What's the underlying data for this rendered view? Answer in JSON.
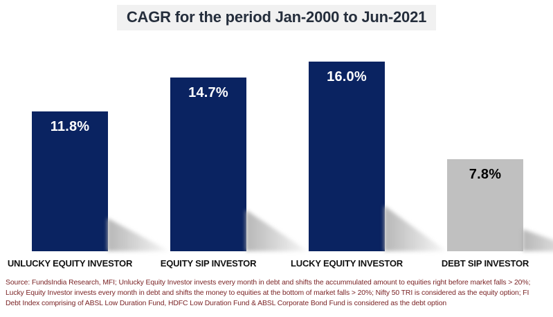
{
  "chart_data": {
    "type": "bar",
    "title": "CAGR for the period Jan-2000 to Jun-2021",
    "categories": [
      "UNLUCKY EQUITY INVESTOR",
      "EQUITY SIP INVESTOR",
      "LUCKY EQUITY INVESTOR",
      "DEBT SIP INVESTOR"
    ],
    "values": [
      11.8,
      14.7,
      16.0,
      7.8
    ],
    "value_labels": [
      "11.8%",
      "14.7%",
      "16.0%",
      "7.8%"
    ],
    "bar_colors": [
      "#0a2361",
      "#0a2361",
      "#0a2361",
      "#c0c0c0"
    ],
    "value_label_colors": [
      "#ffffff",
      "#ffffff",
      "#ffffff",
      "#000000"
    ],
    "ylabel": "",
    "xlabel": "",
    "ylim": [
      0,
      17.5
    ],
    "grid": false,
    "legend": false
  },
  "colors": {
    "navy": "#0a2361",
    "gray": "#c0c0c0",
    "title_text": "#252e3c",
    "title_bg": "#f1f1f1",
    "footnote_text": "#7a2325"
  },
  "footnote": {
    "lines": [
      "Source: FundsIndia Research, MFI; Unlucky Equity Investor invests every month in debt and shifts the accummulated amount to equities right before market falls > 20%;",
      "Lucky Equity Investor invests every month in debt and shifts the money to equities at the bottom of market falls > 20%; Nifty 50 TRI is considered as the equity option; FI",
      "Debt Index comprising of ABSL Low Duration Fund, HDFC Low Duration Fund & ABSL Corporate Bond Fund is considered as the debt option"
    ]
  }
}
